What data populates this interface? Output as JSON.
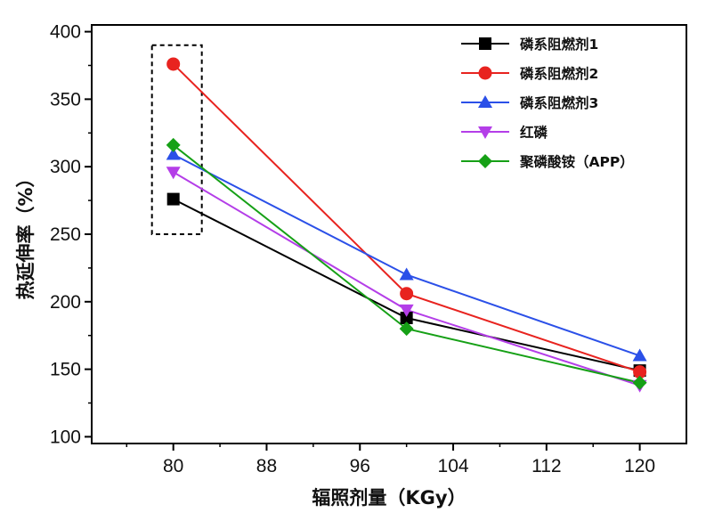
{
  "chart_data": {
    "type": "line",
    "xlabel": "辐照剂量（KGy）",
    "ylabel": "热延伸率（%）",
    "xlim": [
      73,
      124
    ],
    "ylim": [
      95,
      405
    ],
    "xticks": [
      80,
      88,
      96,
      104,
      112,
      120
    ],
    "yticks": [
      100,
      150,
      200,
      250,
      300,
      350,
      400
    ],
    "x": [
      80,
      100,
      120
    ],
    "series": [
      {
        "name": "磷系阻燃剂1",
        "color": "#000000",
        "marker": "square",
        "values": [
          276,
          188,
          149
        ]
      },
      {
        "name": "磷系阻燃剂2",
        "color": "#e8231f",
        "marker": "circle",
        "values": [
          376,
          206,
          148
        ]
      },
      {
        "name": "磷系阻燃剂3",
        "color": "#2b50e8",
        "marker": "triangle-up",
        "values": [
          309,
          220,
          160
        ]
      },
      {
        "name": "红磷",
        "color": "#b43ee8",
        "marker": "triangle-down",
        "values": [
          296,
          194,
          138
        ]
      },
      {
        "name": "聚磷酸铵（APP）",
        "color": "#16a016",
        "marker": "diamond",
        "values": [
          316,
          180,
          140
        ]
      }
    ],
    "highlight_box": {
      "x": [
        80,
        80
      ],
      "y_range": [
        250,
        390
      ],
      "style": "dashed"
    },
    "legend_position": "top-right",
    "grid": false
  }
}
